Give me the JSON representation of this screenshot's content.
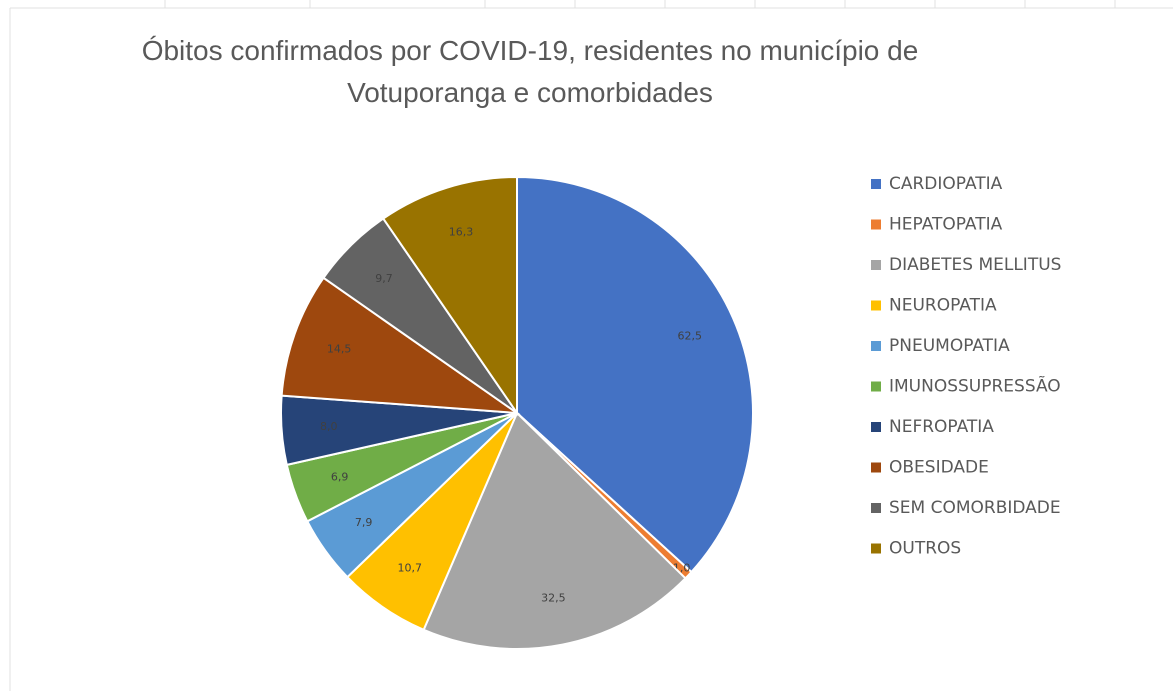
{
  "chart_data": {
    "type": "pie",
    "title": "Óbitos confirmados por COVID-19, residentes no município de Votuporanga e comorbidades",
    "categories": [
      "CARDIOPATIA",
      "HEPATOPATIA",
      "DIABETES MELLITUS",
      "NEUROPATIA",
      "PNEUMOPATIA",
      "IMUNOSSUPRESSÃO",
      "NEFROPATIA",
      "OBESIDADE",
      "SEM COMORBIDADE",
      "OUTROS"
    ],
    "values": [
      62.5,
      1.0,
      32.5,
      10.7,
      7.9,
      6.9,
      8.0,
      14.5,
      9.7,
      16.3
    ],
    "value_labels": [
      "62,5",
      "1,0",
      "32,5",
      "10,7",
      "7,9",
      "6,9",
      "8,0",
      "14,5",
      "9,7",
      "16,3"
    ],
    "colors": [
      "#4472c4",
      "#ed7d31",
      "#a5a5a5",
      "#ffc000",
      "#5b9bd5",
      "#70ad47",
      "#264478",
      "#9e480e",
      "#636363",
      "#997300"
    ],
    "legend": "right"
  }
}
